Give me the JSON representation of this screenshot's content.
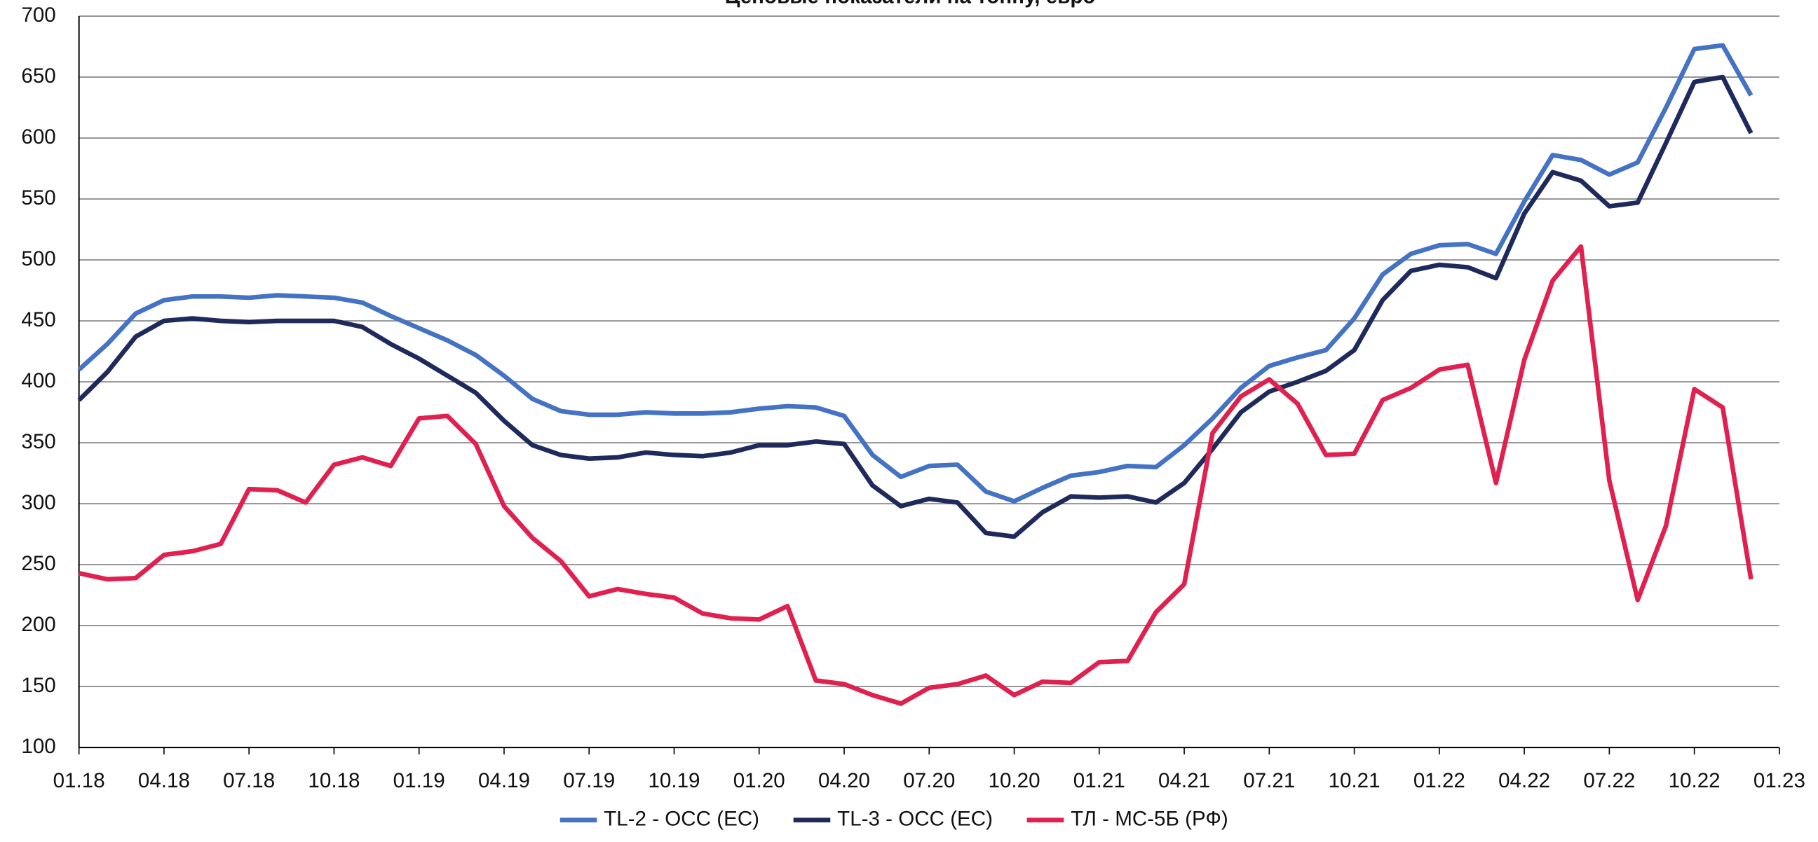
{
  "chart_data": {
    "type": "line",
    "title": "Ценовые показатели на тонну, евро",
    "categories": [
      "01.18",
      null,
      null,
      "04.18",
      null,
      null,
      "07.18",
      null,
      null,
      "10.18",
      null,
      null,
      "01.19",
      null,
      null,
      "04.19",
      null,
      null,
      "07.19",
      null,
      null,
      "10.19",
      null,
      null,
      "01.20",
      null,
      null,
      "04.20",
      null,
      null,
      "07.20",
      null,
      null,
      "10.20",
      null,
      null,
      "01.21",
      null,
      null,
      "04.21",
      null,
      null,
      "07.21",
      null,
      null,
      "10.21",
      null,
      null,
      "01.22",
      null,
      null,
      "04.22",
      null,
      null,
      "07.22",
      null,
      null,
      "10.22",
      null,
      null,
      "01.23"
    ],
    "series": [
      {
        "name": "TL-2 - OCC (EC)",
        "color": "#4472c4",
        "values": [
          410,
          431,
          456,
          467,
          470,
          470,
          469,
          471,
          470,
          469,
          465,
          454,
          444,
          434,
          422,
          405,
          386,
          376,
          373,
          373,
          375,
          374,
          374,
          375,
          378,
          380,
          379,
          372,
          340,
          322,
          331,
          332,
          310,
          302,
          313,
          323,
          326,
          331,
          330,
          348,
          370,
          395,
          413,
          420,
          426,
          452,
          488,
          505,
          512,
          513,
          505,
          548,
          586,
          582,
          570,
          580,
          625,
          673,
          676,
          635,
          null
        ]
      },
      {
        "name": "TL-3 - OCC (EC)",
        "color": "#1f2a5c",
        "values": [
          385,
          408,
          437,
          450,
          452,
          450,
          449,
          450,
          450,
          450,
          445,
          431,
          419,
          405,
          391,
          368,
          348,
          340,
          337,
          338,
          342,
          340,
          339,
          342,
          348,
          348,
          351,
          349,
          315,
          298,
          304,
          301,
          276,
          273,
          293,
          306,
          305,
          306,
          301,
          317,
          345,
          375,
          392,
          400,
          409,
          426,
          467,
          491,
          496,
          494,
          485,
          538,
          572,
          565,
          544,
          547,
          596,
          646,
          650,
          604,
          null
        ]
      },
      {
        "name": "ТЛ - МС-5Б (РФ)",
        "color": "#e0204f",
        "values": [
          243,
          238,
          239,
          258,
          261,
          267,
          312,
          311,
          301,
          332,
          338,
          331,
          370,
          372,
          349,
          298,
          272,
          253,
          224,
          230,
          226,
          223,
          210,
          206,
          205,
          216,
          155,
          152,
          143,
          136,
          149,
          152,
          159,
          143,
          154,
          153,
          170,
          171,
          211,
          234,
          358,
          388,
          402,
          382,
          340,
          341,
          385,
          395,
          410,
          414,
          317,
          418,
          483,
          511,
          319,
          221,
          282,
          394,
          379,
          238,
          null
        ]
      }
    ],
    "ylim": [
      100,
      700
    ],
    "yticks": [
      100,
      150,
      200,
      250,
      300,
      350,
      400,
      450,
      500,
      550,
      600,
      650,
      700
    ],
    "grid": true,
    "legend": "bottom"
  }
}
